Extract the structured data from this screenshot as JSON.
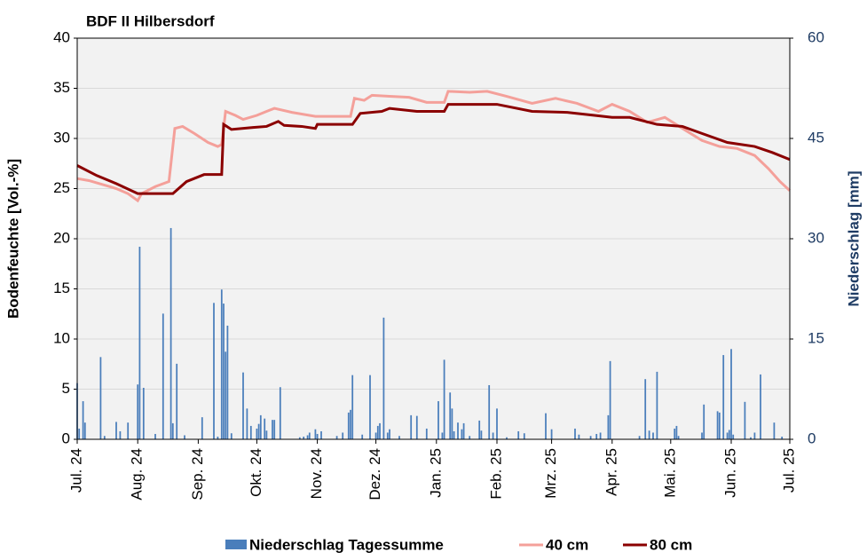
{
  "chart_data": {
    "type": "combo",
    "title": "BDF II Hilbersdorf",
    "y_label": "Bodenfeuchte [Vol.-%]",
    "y2_label": "Niederschlag [mm]",
    "xlim": [
      0,
      365
    ],
    "xticks": [
      {
        "value": 0,
        "label": "Jul. 24"
      },
      {
        "value": 31,
        "label": "Aug. 24"
      },
      {
        "value": 62,
        "label": "Sep. 24"
      },
      {
        "value": 92,
        "label": "Okt. 24"
      },
      {
        "value": 123,
        "label": "Nov. 24"
      },
      {
        "value": 153,
        "label": "Dez. 24"
      },
      {
        "value": 184,
        "label": "Jan. 25"
      },
      {
        "value": 215,
        "label": "Feb. 25"
      },
      {
        "value": 243,
        "label": "Mrz. 25"
      },
      {
        "value": 274,
        "label": "Apr. 25"
      },
      {
        "value": 304,
        "label": "Mai. 25"
      },
      {
        "value": 335,
        "label": "Jun. 25"
      },
      {
        "value": 365,
        "label": "Jul. 25"
      }
    ],
    "ylim": [
      0,
      40
    ],
    "yticks": [
      0,
      5,
      10,
      15,
      20,
      25,
      30,
      35,
      40
    ],
    "y2lim": [
      0,
      60
    ],
    "y2ticks": [
      0,
      15,
      30,
      45,
      60
    ],
    "grid": true,
    "legend": "bottom",
    "series": [
      {
        "name": "Niederschlag Tagessumme",
        "type": "bar",
        "axis": "y2",
        "color": "#4a7ebb",
        "x": [
          0,
          1,
          3,
          4,
          12,
          14,
          20,
          22,
          26,
          31,
          32,
          34,
          40,
          44,
          48,
          49,
          51,
          55,
          64,
          70,
          72,
          74,
          75,
          76,
          77,
          79,
          85,
          87,
          89,
          92,
          93,
          94,
          96,
          97,
          100,
          101,
          104,
          114,
          116,
          118,
          119,
          122,
          123,
          125,
          133,
          136,
          139,
          140,
          141,
          146,
          150,
          153,
          154,
          155,
          157,
          159,
          160,
          165,
          171,
          174,
          179,
          185,
          187,
          188,
          191,
          192,
          193,
          195,
          197,
          198,
          201,
          206,
          207,
          211,
          213,
          215,
          220,
          226,
          229,
          240,
          243,
          255,
          257,
          263,
          266,
          268,
          272,
          273,
          288,
          291,
          293,
          295,
          297,
          306,
          307,
          308,
          320,
          321,
          328,
          329,
          331,
          333,
          334,
          335,
          336,
          342,
          345,
          347,
          350,
          357,
          361
        ],
        "values": [
          8.4,
          1.6,
          5.7,
          2.5,
          12.3,
          0.5,
          2.6,
          1.2,
          2.5,
          8.2,
          28.8,
          7.7,
          0.8,
          18.8,
          31.6,
          2.4,
          11.3,
          0.6,
          3.3,
          20.4,
          0.4,
          22.4,
          20.3,
          13.1,
          17.0,
          0.9,
          10.0,
          4.6,
          2.0,
          1.6,
          2.3,
          3.6,
          3.1,
          1.3,
          2.9,
          2.9,
          7.8,
          0.3,
          0.4,
          0.6,
          1.0,
          1.5,
          0.8,
          1.2,
          0.5,
          1.0,
          4.0,
          4.4,
          9.6,
          0.7,
          9.6,
          1.0,
          2.0,
          2.4,
          18.2,
          1.0,
          1.5,
          0.5,
          3.6,
          3.5,
          1.6,
          5.7,
          1.0,
          11.9,
          7.0,
          4.6,
          1.2,
          2.5,
          1.5,
          2.4,
          0.5,
          2.8,
          1.3,
          8.1,
          1.0,
          4.6,
          0.3,
          1.2,
          0.9,
          3.9,
          1.5,
          1.6,
          0.7,
          0.5,
          0.8,
          1.0,
          3.6,
          11.7,
          0.5,
          9.0,
          1.3,
          1.0,
          10.1,
          1.6,
          2.0,
          0.5,
          1.0,
          5.2,
          4.2,
          4.0,
          12.6,
          1.0,
          1.4,
          13.5,
          0.7,
          5.6,
          0.3,
          1.0,
          9.7,
          2.5,
          0.4
        ]
      },
      {
        "name": "40 cm",
        "type": "line",
        "axis": "y",
        "color": "#f4a09a",
        "x": [
          0,
          6,
          13,
          20,
          26,
          31,
          33,
          40,
          47,
          50,
          54,
          60,
          67,
          72,
          74,
          76,
          81,
          85,
          92,
          97,
          101,
          110,
          122,
          140,
          142,
          147,
          151,
          160,
          170,
          179,
          188,
          190,
          201,
          210,
          220,
          233,
          245,
          256,
          267,
          274,
          283,
          292,
          301,
          310,
          320,
          329,
          338,
          347,
          354,
          360,
          365
        ],
        "values": [
          26.0,
          25.8,
          25.4,
          25.0,
          24.5,
          23.8,
          24.5,
          25.2,
          25.7,
          31.0,
          31.2,
          30.5,
          29.6,
          29.2,
          29.4,
          32.7,
          32.3,
          31.9,
          32.3,
          32.7,
          33.0,
          32.6,
          32.2,
          32.2,
          34.0,
          33.8,
          34.3,
          34.2,
          34.1,
          33.6,
          33.6,
          34.7,
          34.6,
          34.7,
          34.2,
          33.5,
          34.0,
          33.5,
          32.7,
          33.4,
          32.7,
          31.6,
          32.1,
          31.0,
          29.8,
          29.2,
          29.0,
          28.3,
          27.0,
          25.7,
          24.8
        ]
      },
      {
        "name": "80 cm",
        "type": "line",
        "axis": "y",
        "color": "#8b0000",
        "x": [
          0,
          10,
          20,
          31,
          49,
          56,
          65,
          74,
          75,
          79,
          90,
          97,
          103,
          106,
          115,
          122,
          123,
          141,
          145,
          156,
          160,
          174,
          188,
          190,
          215,
          233,
          251,
          265,
          274,
          283,
          297,
          310,
          320,
          333,
          347,
          356,
          365
        ],
        "values": [
          27.3,
          26.3,
          25.5,
          24.5,
          24.5,
          25.7,
          26.4,
          26.4,
          31.4,
          30.9,
          31.1,
          31.2,
          31.7,
          31.3,
          31.2,
          31.0,
          31.4,
          31.4,
          32.5,
          32.7,
          33.0,
          32.7,
          32.7,
          33.4,
          33.4,
          32.7,
          32.6,
          32.3,
          32.1,
          32.1,
          31.4,
          31.2,
          30.5,
          29.6,
          29.2,
          28.6,
          27.9
        ]
      }
    ]
  }
}
